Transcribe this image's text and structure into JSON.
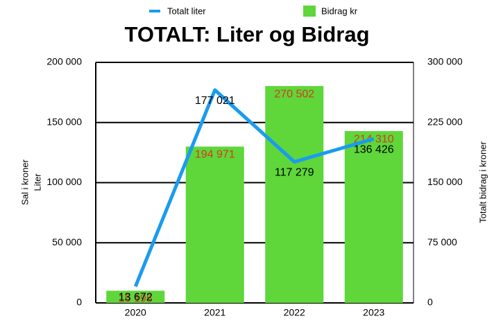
{
  "chart_data": {
    "type": "bar_line",
    "title": "TOTALT: Liter og Bidrag",
    "categories": [
      "2020",
      "2021",
      "2022",
      "2023"
    ],
    "series": [
      {
        "name": "Totalt liter",
        "type": "line",
        "color": "#1a9bef",
        "axis": "y",
        "values": [
          13672,
          177021,
          117279,
          136426
        ],
        "value_labels": [
          "13 672",
          "177 021",
          "117 279",
          "136 426"
        ]
      },
      {
        "name": "Bidrag kr",
        "type": "bar",
        "color": "#5fd63a",
        "axis": "y2",
        "values": [
          15195,
          194971,
          270502,
          214310
        ],
        "value_labels": [
          "15 195",
          "194 971",
          "270 502",
          "214 310"
        ]
      }
    ],
    "y_label": [
      "Sal i kroner",
      "Liter"
    ],
    "y2_label": "Totalt bidrag i kroner",
    "ylim": [
      0,
      200000
    ],
    "yticks": [
      0,
      {
        "value": 50000,
        "label": "50 000"
      },
      {
        "value": 100000,
        "label": "100 000"
      },
      {
        "value": 150000,
        "label": "150 000"
      },
      {
        "value": 200000,
        "label": "200 000"
      }
    ],
    "y2lim": [
      0,
      300000
    ],
    "y2ticks": [
      0,
      {
        "value": 75000,
        "label": "75 000"
      },
      {
        "value": 150000,
        "label": "150 000"
      },
      {
        "value": 225000,
        "label": "225 000"
      },
      {
        "value": 300000,
        "label": "300 000"
      }
    ],
    "grid": true,
    "bar_label_color": "#d23c1e"
  }
}
